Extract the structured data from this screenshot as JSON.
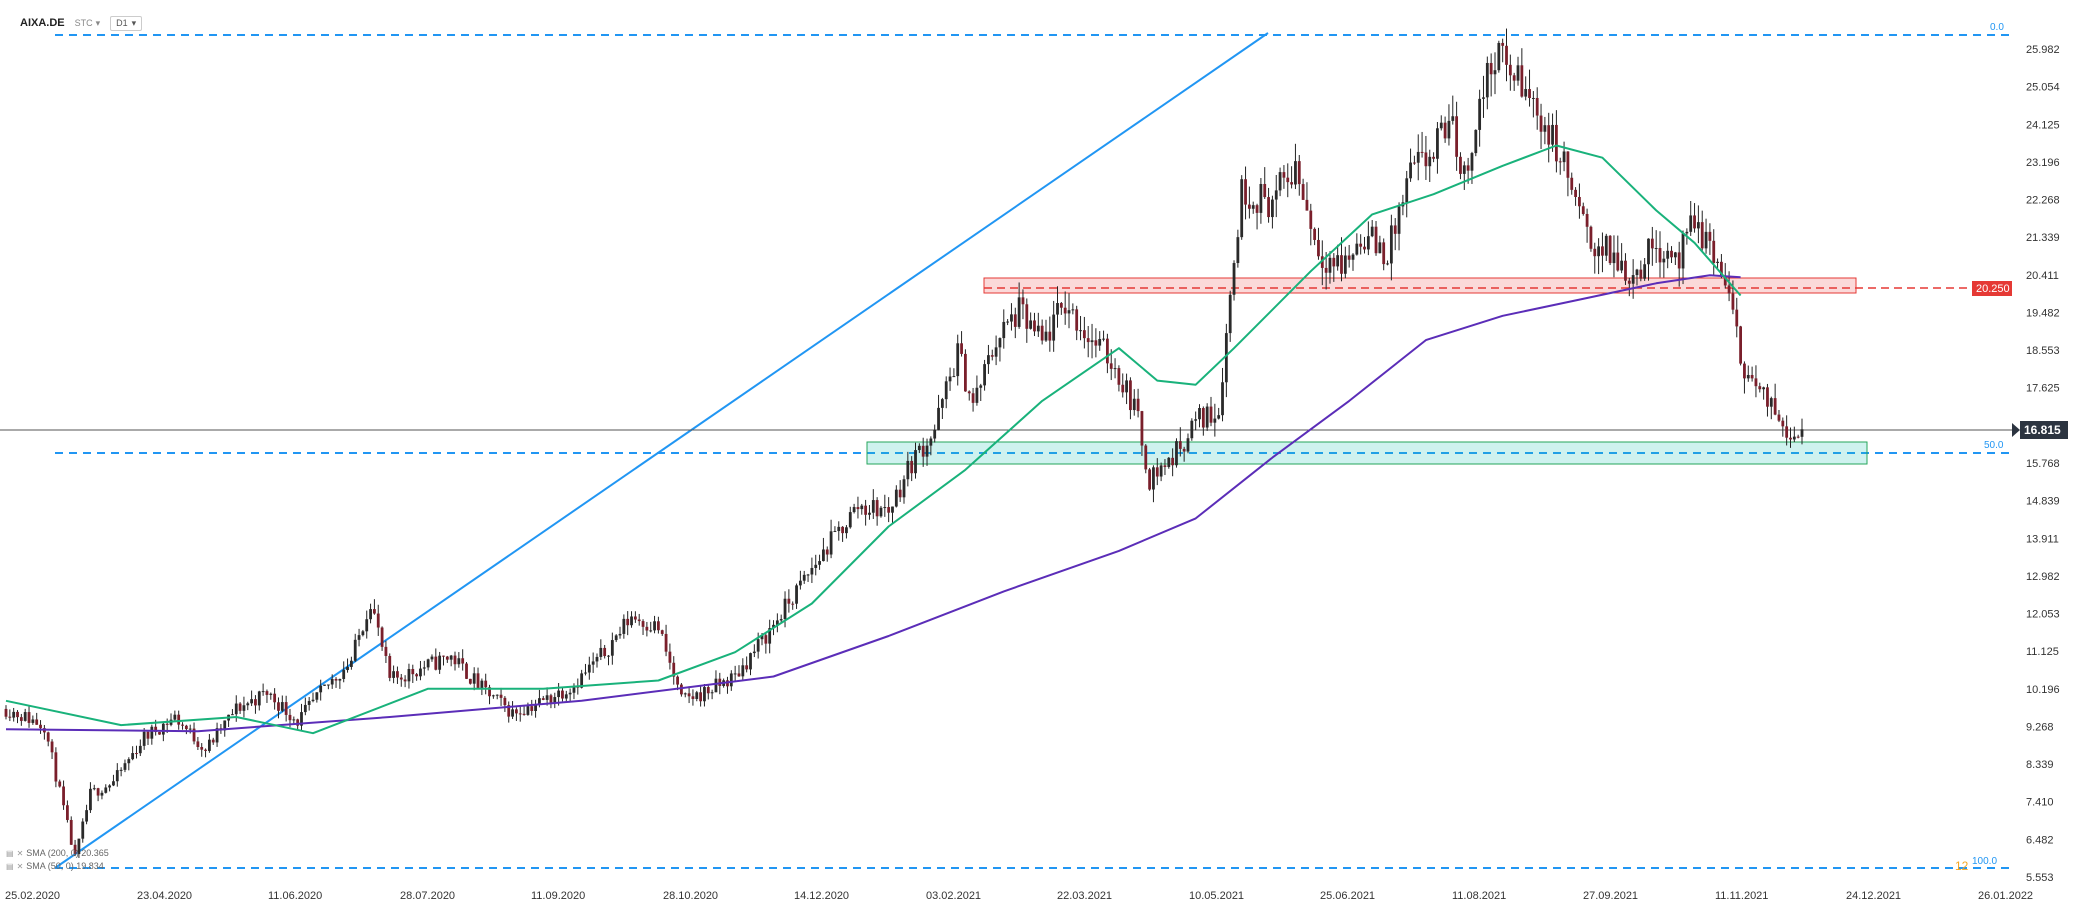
{
  "header": {
    "symbol": "AIXA.DE",
    "pricing": "STC",
    "timeframe": "D1"
  },
  "legend": [
    {
      "label": "SMA (200, 0) 20.365",
      "color": "#5b2db8"
    },
    {
      "label": "SMA (50, 0) 19.834",
      "color": "#19b27b"
    }
  ],
  "chart_data": {
    "type": "candlestick",
    "y_ticks": [
      "25.982",
      "25.054",
      "24.125",
      "23.196",
      "22.268",
      "21.339",
      "20.411",
      "19.482",
      "18.553",
      "17.625",
      "16.696",
      "15.768",
      "14.839",
      "13.911",
      "12.982",
      "12.053",
      "11.125",
      "10.196",
      "9.268",
      "8.339",
      "7.410",
      "6.482",
      "5.553"
    ],
    "ylim": [
      5.553,
      25.982
    ],
    "x_ticks": [
      "25.02.2020",
      "23.04.2020",
      "11.06.2020",
      "28.07.2020",
      "11.09.2020",
      "28.10.2020",
      "14.12.2020",
      "03.02.2021",
      "22.03.2021",
      "10.05.2021",
      "25.06.2021",
      "11.08.2021",
      "27.09.2021",
      "11.11.2021",
      "24.12.2021",
      "26.01.2022"
    ],
    "current_price": "16.815",
    "level_label": "20.250",
    "fib_labels": {
      "top": "0.0",
      "mid": "50.0",
      "bottom": "100.0"
    },
    "corner_label": "12",
    "price_path": [
      [
        0,
        9.7
      ],
      [
        10,
        9.3
      ],
      [
        18,
        6.0
      ],
      [
        22,
        7.6
      ],
      [
        28,
        7.9
      ],
      [
        36,
        9.0
      ],
      [
        44,
        9.5
      ],
      [
        52,
        8.7
      ],
      [
        60,
        9.7
      ],
      [
        68,
        10.1
      ],
      [
        76,
        9.4
      ],
      [
        84,
        10.3
      ],
      [
        90,
        10.9
      ],
      [
        95,
        12.4
      ],
      [
        100,
        10.4
      ],
      [
        108,
        10.7
      ],
      [
        116,
        11.0
      ],
      [
        124,
        10.2
      ],
      [
        132,
        9.6
      ],
      [
        140,
        9.9
      ],
      [
        148,
        10.3
      ],
      [
        156,
        11.1
      ],
      [
        163,
        12.0
      ],
      [
        170,
        11.7
      ],
      [
        176,
        9.9
      ],
      [
        182,
        10.1
      ],
      [
        190,
        10.5
      ],
      [
        198,
        11.5
      ],
      [
        206,
        12.6
      ],
      [
        214,
        13.7
      ],
      [
        222,
        14.7
      ],
      [
        230,
        14.6
      ],
      [
        236,
        15.8
      ],
      [
        242,
        16.6
      ],
      [
        248,
        18.5
      ],
      [
        252,
        17.2
      ],
      [
        258,
        18.8
      ],
      [
        264,
        19.5
      ],
      [
        270,
        18.7
      ],
      [
        276,
        19.7
      ],
      [
        282,
        18.9
      ],
      [
        288,
        18.3
      ],
      [
        294,
        17.2
      ],
      [
        298,
        15.4
      ],
      [
        304,
        15.9
      ],
      [
        310,
        16.8
      ],
      [
        316,
        17.1
      ],
      [
        318,
        19.0
      ],
      [
        322,
        22.5
      ],
      [
        330,
        22.2
      ],
      [
        336,
        23.1
      ],
      [
        342,
        21.0
      ],
      [
        348,
        20.6
      ],
      [
        354,
        21.4
      ],
      [
        360,
        20.9
      ],
      [
        366,
        22.9
      ],
      [
        372,
        23.4
      ],
      [
        376,
        24.3
      ],
      [
        380,
        22.8
      ],
      [
        384,
        24.6
      ],
      [
        388,
        25.9
      ],
      [
        394,
        25.2
      ],
      [
        400,
        24.3
      ],
      [
        406,
        23.1
      ],
      [
        412,
        21.3
      ],
      [
        418,
        20.9
      ],
      [
        424,
        20.4
      ],
      [
        430,
        21.2
      ],
      [
        436,
        20.8
      ],
      [
        440,
        21.7
      ],
      [
        444,
        21.1
      ],
      [
        448,
        20.2
      ],
      [
        452,
        18.4
      ],
      [
        456,
        17.6
      ],
      [
        460,
        17.1
      ],
      [
        466,
        16.5
      ],
      [
        468,
        16.4
      ]
    ],
    "sma_50": [
      [
        0,
        9.9
      ],
      [
        30,
        9.3
      ],
      [
        60,
        9.5
      ],
      [
        80,
        9.1
      ],
      [
        110,
        10.2
      ],
      [
        140,
        10.2
      ],
      [
        170,
        10.4
      ],
      [
        190,
        11.1
      ],
      [
        210,
        12.3
      ],
      [
        230,
        14.2
      ],
      [
        250,
        15.6
      ],
      [
        270,
        17.3
      ],
      [
        290,
        18.6
      ],
      [
        300,
        17.8
      ],
      [
        310,
        17.7
      ],
      [
        320,
        18.6
      ],
      [
        340,
        20.5
      ],
      [
        356,
        21.9
      ],
      [
        372,
        22.4
      ],
      [
        390,
        23.1
      ],
      [
        404,
        23.6
      ],
      [
        416,
        23.3
      ],
      [
        430,
        22.0
      ],
      [
        440,
        21.2
      ],
      [
        452,
        19.9
      ]
    ],
    "sma_200": [
      [
        0,
        9.2
      ],
      [
        50,
        9.15
      ],
      [
        100,
        9.5
      ],
      [
        150,
        9.9
      ],
      [
        200,
        10.5
      ],
      [
        230,
        11.5
      ],
      [
        260,
        12.6
      ],
      [
        290,
        13.6
      ],
      [
        310,
        14.4
      ],
      [
        330,
        15.9
      ],
      [
        350,
        17.3
      ],
      [
        370,
        18.8
      ],
      [
        390,
        19.4
      ],
      [
        410,
        19.8
      ],
      [
        430,
        20.2
      ],
      [
        444,
        20.4
      ],
      [
        452,
        20.35
      ]
    ]
  }
}
